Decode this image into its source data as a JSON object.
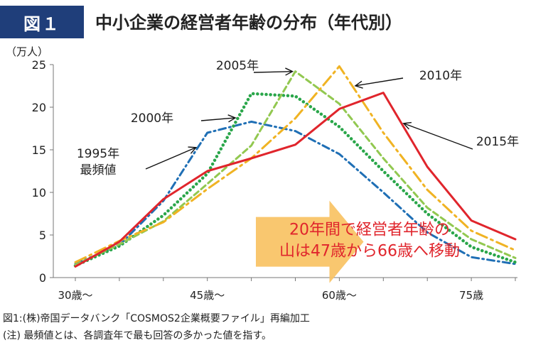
{
  "header": {
    "badge": "図１",
    "title": "中小企業の経営者年齢の分布（年代別）"
  },
  "chart_data": {
    "type": "line",
    "unit_label": "（万人）",
    "x": [
      30,
      35,
      40,
      45,
      50,
      55,
      60,
      65,
      70,
      75,
      80
    ],
    "x_tick_labels": [
      {
        "x": 30,
        "label": "30歳～"
      },
      {
        "x": 45,
        "label": "45歳～"
      },
      {
        "x": 60,
        "label": "60歳～"
      },
      {
        "x": 75,
        "label": "75歳"
      }
    ],
    "xlim": [
      30,
      80
    ],
    "ylim": [
      0,
      25
    ],
    "yticks": [
      0,
      5,
      10,
      15,
      20,
      25
    ],
    "grid": false,
    "series": [
      {
        "name": "1995年\n最頻値",
        "color": "#1f6fb5",
        "style": "dashdot",
        "values": [
          1.6,
          3.8,
          9.0,
          17.0,
          18.3,
          17.2,
          14.5,
          10.0,
          5.3,
          2.4,
          1.6
        ]
      },
      {
        "name": "2000年",
        "color": "#2aa64a",
        "style": "dotted",
        "values": [
          1.4,
          3.7,
          7.3,
          12.2,
          21.6,
          21.3,
          17.7,
          12.5,
          7.5,
          3.6,
          1.8
        ]
      },
      {
        "name": "2005年",
        "color": "#92c850",
        "style": "dashed",
        "values": [
          1.5,
          3.9,
          6.6,
          11.0,
          15.5,
          24.2,
          20.4,
          14.0,
          8.2,
          4.5,
          2.3
        ]
      },
      {
        "name": "2010年",
        "color": "#f0b323",
        "style": "longdashdot",
        "values": [
          1.8,
          4.3,
          6.5,
          10.4,
          14.0,
          18.7,
          24.8,
          17.0,
          10.3,
          5.5,
          3.2
        ]
      },
      {
        "name": "2015年",
        "color": "#e0252c",
        "style": "solid",
        "values": [
          1.3,
          4.2,
          9.2,
          12.5,
          14.0,
          15.6,
          19.8,
          21.7,
          13.0,
          6.7,
          4.5
        ]
      }
    ],
    "series_label_points": [
      {
        "series": 0,
        "x": 44
      },
      {
        "series": 1,
        "x": 48.5
      },
      {
        "series": 2,
        "x": 55
      },
      {
        "series": 3,
        "x": 61.5
      },
      {
        "series": 4,
        "x": 67
      }
    ],
    "annotation": "20年間で経営者年齢の\n山は47歳から66歳へ移動"
  },
  "footer": {
    "source": "図1:(株)帝国データバンク「COSMOS2企業概要ファイル」再編加工",
    "note": "(注) 最頻値とは、各調査年で最も回答の多かった値を指す。"
  }
}
